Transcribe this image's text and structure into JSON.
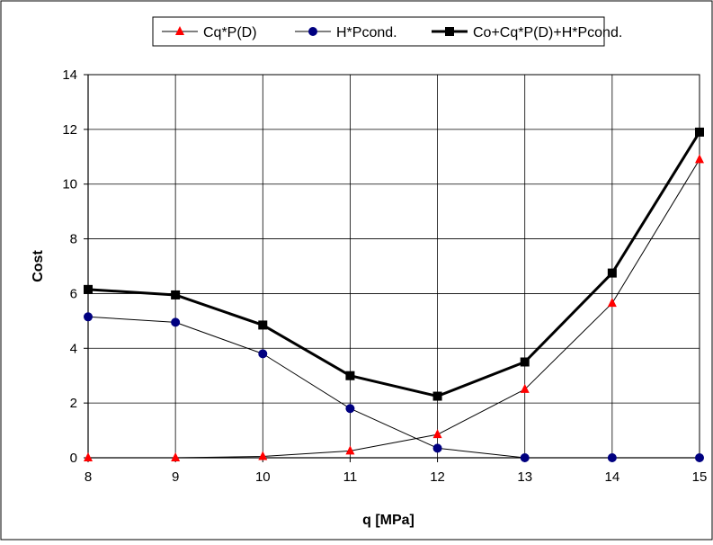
{
  "chart_data": {
    "type": "line",
    "title": "",
    "xlabel": "q [MPa]",
    "ylabel": "Cost",
    "x": [
      8,
      9,
      10,
      11,
      12,
      13,
      14,
      15
    ],
    "xlim": [
      8,
      15
    ],
    "ylim": [
      0,
      14
    ],
    "yticks": [
      0,
      2,
      4,
      6,
      8,
      10,
      12,
      14
    ],
    "grid": true,
    "legend_position": "top",
    "series": [
      {
        "name": "Cq*P(D)",
        "marker": "triangle",
        "color": "#ff0000",
        "line_color": "#000000",
        "line_style": "thin",
        "values": [
          0.0,
          0.0,
          0.05,
          0.25,
          0.85,
          2.5,
          5.65,
          10.9
        ]
      },
      {
        "name": "H*Pcond.",
        "marker": "circle",
        "color": "#000080",
        "line_color": "#000000",
        "line_style": "thin",
        "values": [
          5.15,
          4.95,
          3.8,
          1.8,
          0.35,
          0.0,
          0.0,
          0.0
        ]
      },
      {
        "name": "Co+Cq*P(D)+H*Pcond.",
        "marker": "square",
        "color": "#000000",
        "line_color": "#000000",
        "line_style": "thick",
        "values": [
          6.15,
          5.95,
          4.85,
          3.0,
          2.25,
          3.5,
          6.75,
          11.9
        ]
      }
    ]
  }
}
